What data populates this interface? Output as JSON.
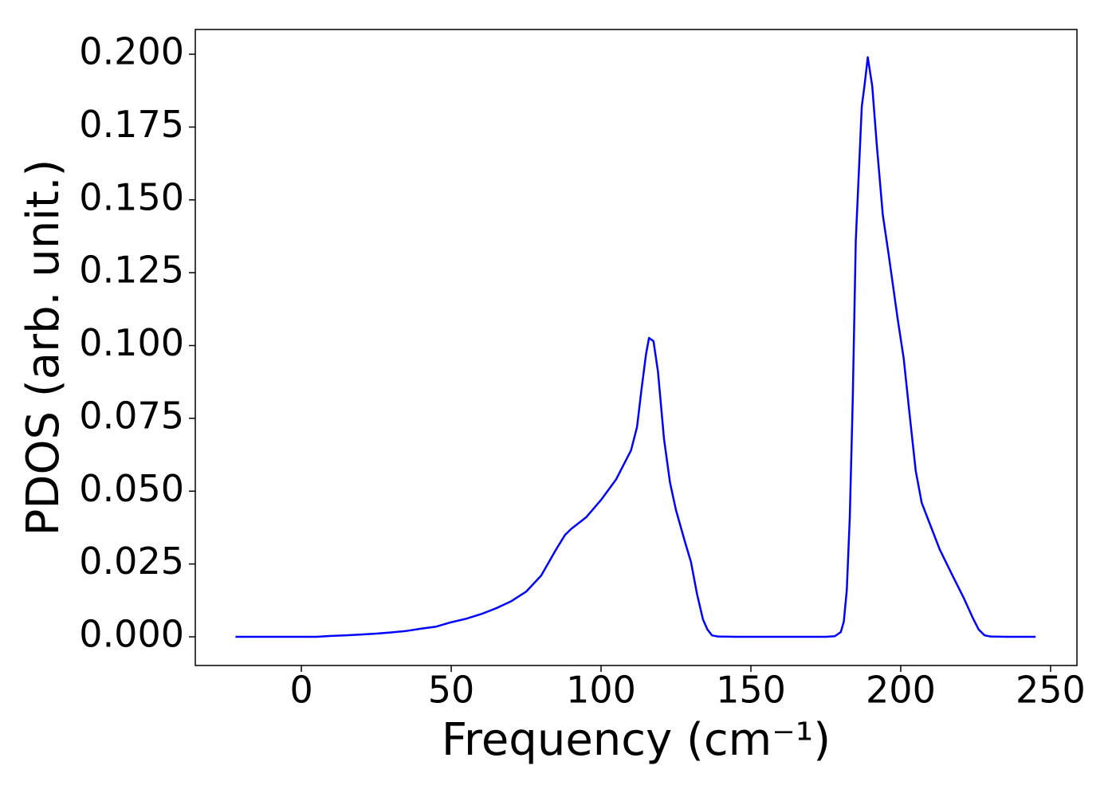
{
  "chart_data": {
    "type": "line",
    "xlabel": "Frequency (cm⁻¹)",
    "ylabel": "PDOS (arb. unit.)",
    "color": "#0000ff",
    "x": [
      -22,
      -15,
      -10,
      -5,
      0,
      5,
      10,
      15,
      20,
      25,
      30,
      35,
      40,
      45,
      50,
      55,
      60,
      65,
      70,
      75,
      80,
      85,
      88,
      90,
      95,
      100,
      105,
      108,
      110,
      112,
      113.5,
      115,
      116,
      117.5,
      119,
      121,
      123,
      125,
      128,
      130,
      132,
      134,
      135.5,
      137,
      139,
      145,
      155,
      165,
      175,
      178,
      180,
      181,
      182,
      183,
      184,
      185,
      187,
      188,
      189,
      190.5,
      192,
      194,
      196,
      199,
      201,
      203,
      205,
      207,
      210,
      213,
      217,
      221,
      224,
      226,
      228,
      230,
      235,
      240,
      245
    ],
    "values": [
      0,
      0,
      0,
      0,
      0,
      0,
      0.0003,
      0.0005,
      0.0008,
      0.0011,
      0.0015,
      0.002,
      0.0028,
      0.0035,
      0.005,
      0.0062,
      0.0078,
      0.0098,
      0.0122,
      0.0155,
      0.021,
      0.03,
      0.035,
      0.037,
      0.041,
      0.047,
      0.054,
      0.06,
      0.064,
      0.072,
      0.085,
      0.097,
      0.1026,
      0.1015,
      0.091,
      0.068,
      0.053,
      0.0435,
      0.0326,
      0.0257,
      0.0148,
      0.006,
      0.0025,
      0.0005,
      0.0001,
      0,
      0,
      0,
      0,
      0.0002,
      0.0016,
      0.0052,
      0.016,
      0.041,
      0.082,
      0.136,
      0.182,
      0.19,
      0.199,
      0.189,
      0.169,
      0.145,
      0.131,
      0.109,
      0.0955,
      0.076,
      0.057,
      0.046,
      0.038,
      0.03,
      0.0216,
      0.0134,
      0.0066,
      0.0025,
      0.0005,
      0.0001,
      0,
      0,
      0
    ],
    "xlim": [
      -35.4,
      258.8
    ],
    "ylim": [
      -0.00985,
      0.2085
    ],
    "xticks": [
      0,
      50,
      100,
      150,
      200,
      250
    ],
    "yticks": [
      {
        "value": 0,
        "label": "0.000"
      },
      0.025,
      {
        "value": 0.05,
        "label": "0.050"
      },
      0.075,
      {
        "value": 0.1,
        "label": "0.100"
      },
      0.125,
      {
        "value": 0.15,
        "label": "0.150"
      },
      0.175,
      {
        "value": 0.2,
        "label": "0.200"
      }
    ]
  }
}
